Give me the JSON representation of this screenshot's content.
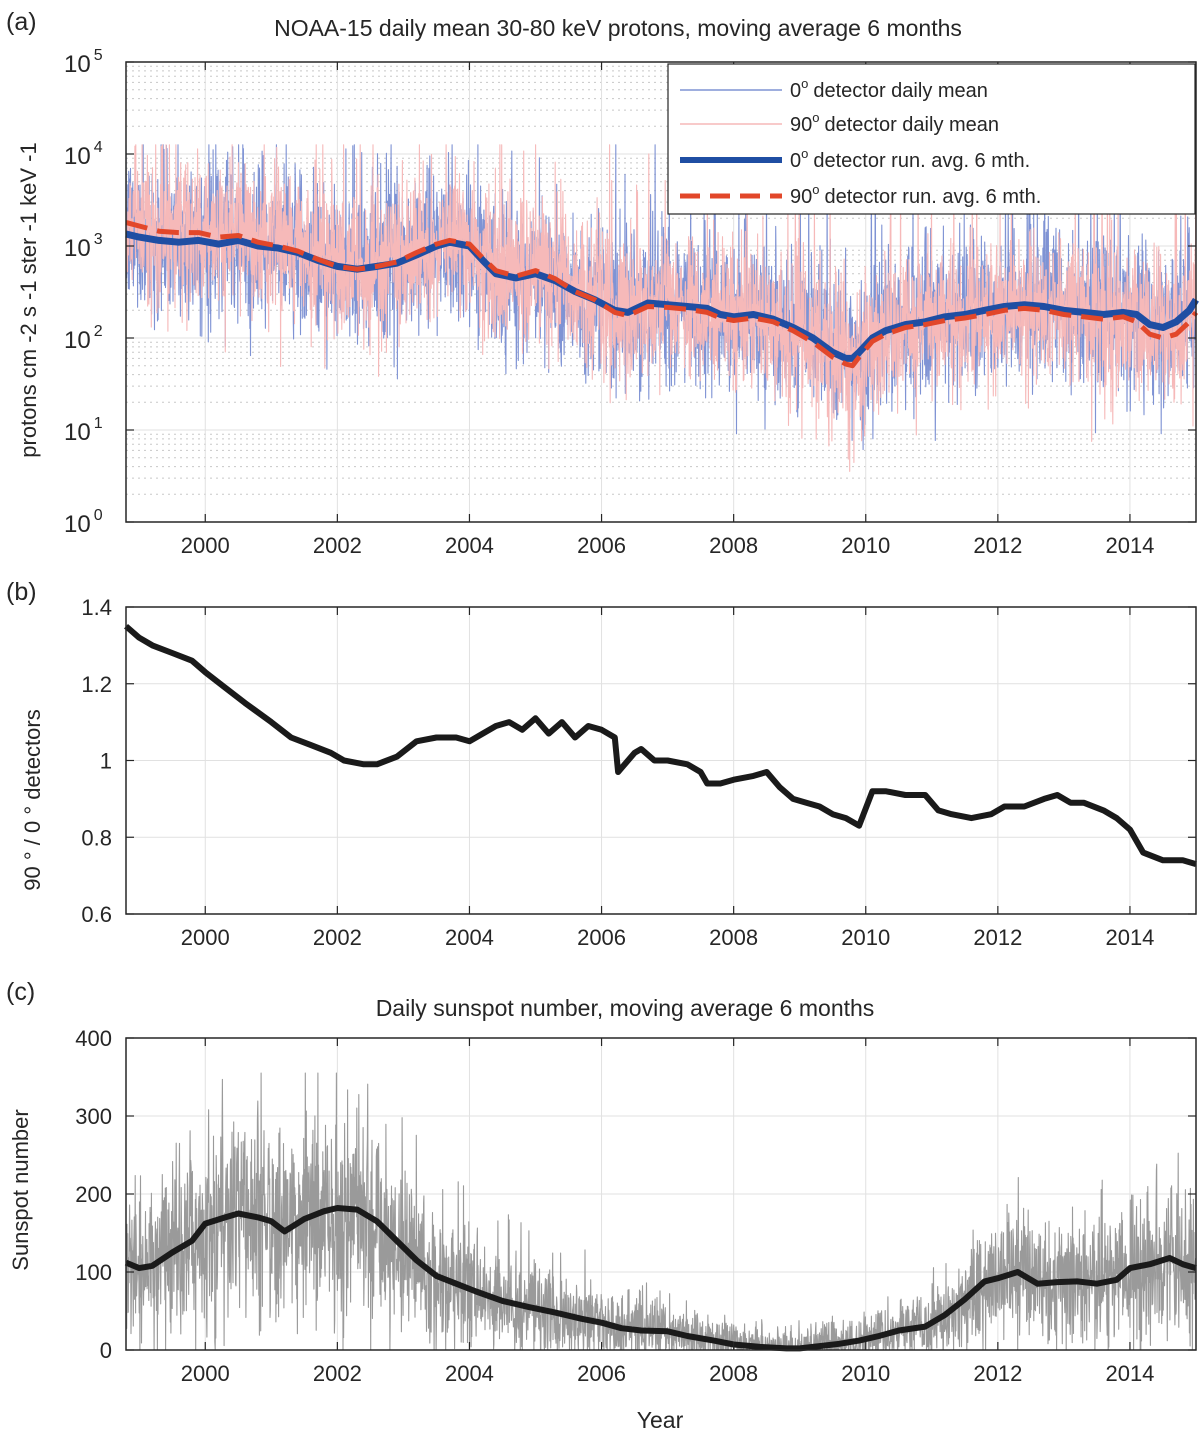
{
  "figure": {
    "panel_labels": [
      "(a)",
      "(b)",
      "(c)"
    ],
    "xlabel": "Year",
    "x_range": [
      1998.8,
      2015.0
    ],
    "x_ticks": [
      2000,
      2002,
      2004,
      2006,
      2008,
      2010,
      2012,
      2014
    ]
  },
  "colors": {
    "p0_raw": "#7f93d4",
    "p90_raw": "#f6b9b9",
    "p0_avg": "#1f4ea3",
    "p90_avg": "#e2472a",
    "black": "#1a1a1a",
    "sunspot_raw": "#9a9a9a",
    "grid": "#e1e1e1",
    "axis": "#262626"
  },
  "chart_data": [
    {
      "type": "line",
      "title": "NOAA-15 daily mean 30-80 keV protons, moving average 6 months",
      "ylabel": "protons cm  -2 s -1 ster -1 keV -1",
      "yscale": "log",
      "ylim": [
        1,
        100000
      ],
      "y_tick_exponents": [
        0,
        1,
        2,
        3,
        4,
        5
      ],
      "y_tick_base": "10",
      "legend_position": "top-right",
      "legend": [
        {
          "angle": "0",
          "sup": "o",
          "text": "detector daily mean"
        },
        {
          "angle": "90",
          "sup": "o",
          "text": "detector daily mean"
        },
        {
          "angle": "0",
          "sup": "o",
          "text": "detector run. avg. 6 mth."
        },
        {
          "angle": "90",
          "sup": "o",
          "text": "detector run. avg. 6 mth."
        }
      ],
      "series": [
        {
          "name": "0 deg detector run. avg. 6 mth.",
          "x": [
            1998.8,
            1999.0,
            1999.3,
            1999.6,
            1999.9,
            2000.2,
            2000.5,
            2000.8,
            2001.1,
            2001.4,
            2001.7,
            2002.0,
            2002.3,
            2002.6,
            2002.9,
            2003.2,
            2003.5,
            2003.7,
            2004.0,
            2004.2,
            2004.4,
            2004.7,
            2005.0,
            2005.3,
            2005.6,
            2005.9,
            2006.2,
            2006.4,
            2006.7,
            2007.0,
            2007.3,
            2007.6,
            2007.8,
            2008.0,
            2008.3,
            2008.6,
            2008.9,
            2009.2,
            2009.5,
            2009.7,
            2009.8,
            2009.9,
            2010.1,
            2010.3,
            2010.6,
            2010.9,
            2011.2,
            2011.5,
            2011.8,
            2012.1,
            2012.4,
            2012.7,
            2013.0,
            2013.3,
            2013.6,
            2013.9,
            2014.1,
            2014.3,
            2014.5,
            2014.7,
            2014.9,
            2015.0
          ],
          "y": [
            1350,
            1250,
            1150,
            1100,
            1150,
            1050,
            1150,
            1000,
            950,
            850,
            700,
            600,
            560,
            600,
            650,
            800,
            1000,
            1100,
            1000,
            700,
            500,
            450,
            500,
            420,
            320,
            260,
            200,
            190,
            240,
            230,
            220,
            210,
            180,
            170,
            180,
            160,
            130,
            100,
            70,
            60,
            60,
            70,
            100,
            120,
            140,
            150,
            170,
            180,
            200,
            220,
            230,
            220,
            200,
            190,
            180,
            190,
            180,
            140,
            130,
            150,
            200,
            260
          ]
        },
        {
          "name": "90 deg detector run. avg. 6 mth.",
          "x": [
            1998.8,
            1999.0,
            1999.3,
            1999.6,
            1999.9,
            2000.2,
            2000.5,
            2000.8,
            2001.1,
            2001.4,
            2001.7,
            2002.0,
            2002.3,
            2002.6,
            2002.9,
            2003.2,
            2003.5,
            2003.7,
            2004.0,
            2004.2,
            2004.4,
            2004.7,
            2005.0,
            2005.3,
            2005.6,
            2005.9,
            2006.2,
            2006.4,
            2006.7,
            2007.0,
            2007.3,
            2007.6,
            2007.8,
            2008.0,
            2008.3,
            2008.6,
            2008.9,
            2009.2,
            2009.5,
            2009.7,
            2009.8,
            2009.9,
            2010.1,
            2010.3,
            2010.6,
            2010.9,
            2011.2,
            2011.5,
            2011.8,
            2012.1,
            2012.4,
            2012.7,
            2013.0,
            2013.3,
            2013.6,
            2013.9,
            2014.1,
            2014.3,
            2014.5,
            2014.7,
            2014.9,
            2015.0
          ],
          "y": [
            1800,
            1650,
            1450,
            1400,
            1400,
            1250,
            1300,
            1100,
            1000,
            880,
            720,
            600,
            560,
            600,
            670,
            850,
            1050,
            1150,
            1050,
            740,
            540,
            470,
            540,
            440,
            320,
            260,
            190,
            175,
            220,
            215,
            205,
            190,
            165,
            155,
            165,
            150,
            120,
            90,
            62,
            52,
            50,
            62,
            92,
            110,
            130,
            140,
            155,
            165,
            180,
            200,
            210,
            200,
            180,
            170,
            160,
            170,
            150,
            110,
            100,
            110,
            150,
            190
          ]
        }
      ]
    },
    {
      "type": "line",
      "title": "",
      "ylabel": "90 ° / 0 ° detectors",
      "ylim": [
        0.6,
        1.4
      ],
      "y_ticks": [
        "0.6",
        "0.8",
        "1",
        "1.2",
        "1.4"
      ],
      "series": [
        {
          "name": "90/0 ratio",
          "x": [
            1998.8,
            1999.0,
            1999.2,
            1999.5,
            1999.8,
            2000.0,
            2000.3,
            2000.6,
            2001.0,
            2001.3,
            2001.6,
            2001.9,
            2002.1,
            2002.4,
            2002.6,
            2002.9,
            2003.2,
            2003.5,
            2003.8,
            2004.0,
            2004.2,
            2004.4,
            2004.6,
            2004.8,
            2005.0,
            2005.2,
            2005.4,
            2005.6,
            2005.8,
            2006.0,
            2006.2,
            2006.25,
            2006.3,
            2006.5,
            2006.6,
            2006.8,
            2007.0,
            2007.3,
            2007.5,
            2007.6,
            2007.8,
            2008.0,
            2008.3,
            2008.5,
            2008.7,
            2008.9,
            2009.1,
            2009.3,
            2009.5,
            2009.7,
            2009.8,
            2009.9,
            2010.1,
            2010.3,
            2010.6,
            2010.9,
            2011.1,
            2011.3,
            2011.6,
            2011.9,
            2012.1,
            2012.4,
            2012.7,
            2012.9,
            2013.1,
            2013.3,
            2013.6,
            2013.8,
            2014.0,
            2014.2,
            2014.5,
            2014.8,
            2015.0
          ],
          "y": [
            1.35,
            1.32,
            1.3,
            1.28,
            1.26,
            1.23,
            1.19,
            1.15,
            1.1,
            1.06,
            1.04,
            1.02,
            1.0,
            0.99,
            0.99,
            1.01,
            1.05,
            1.06,
            1.06,
            1.05,
            1.07,
            1.09,
            1.1,
            1.08,
            1.11,
            1.07,
            1.1,
            1.06,
            1.09,
            1.08,
            1.06,
            0.97,
            0.98,
            1.02,
            1.03,
            1.0,
            1.0,
            0.99,
            0.97,
            0.94,
            0.94,
            0.95,
            0.96,
            0.97,
            0.93,
            0.9,
            0.89,
            0.88,
            0.86,
            0.85,
            0.84,
            0.83,
            0.92,
            0.92,
            0.91,
            0.91,
            0.87,
            0.86,
            0.85,
            0.86,
            0.88,
            0.88,
            0.9,
            0.91,
            0.89,
            0.89,
            0.87,
            0.85,
            0.82,
            0.76,
            0.74,
            0.74,
            0.73
          ]
        }
      ]
    },
    {
      "type": "line",
      "title": "Daily sunspot number, moving average 6 months",
      "ylabel": "Sunspot number",
      "ylim": [
        0,
        400
      ],
      "y_ticks": [
        "0",
        "100",
        "200",
        "300",
        "400"
      ],
      "series": [
        {
          "name": "sunspot run. avg. 6 mth.",
          "x": [
            1998.8,
            1999.0,
            1999.2,
            1999.5,
            1999.8,
            2000.0,
            2000.3,
            2000.5,
            2000.8,
            2001.0,
            2001.2,
            2001.5,
            2001.8,
            2002.0,
            2002.3,
            2002.6,
            2002.9,
            2003.2,
            2003.5,
            2003.8,
            2004.1,
            2004.5,
            2004.9,
            2005.3,
            2005.7,
            2006.0,
            2006.3,
            2006.6,
            2007.0,
            2007.3,
            2007.7,
            2008.0,
            2008.4,
            2008.8,
            2009.0,
            2009.3,
            2009.6,
            2009.9,
            2010.2,
            2010.5,
            2010.9,
            2011.2,
            2011.5,
            2011.8,
            2012.0,
            2012.3,
            2012.6,
            2012.9,
            2013.2,
            2013.5,
            2013.8,
            2014.0,
            2014.3,
            2014.6,
            2014.8,
            2015.0
          ],
          "y": [
            112,
            105,
            108,
            125,
            140,
            162,
            170,
            175,
            170,
            165,
            152,
            168,
            178,
            182,
            180,
            165,
            140,
            115,
            95,
            85,
            75,
            63,
            55,
            48,
            40,
            35,
            28,
            25,
            24,
            18,
            12,
            7,
            4,
            2,
            2,
            5,
            8,
            12,
            18,
            25,
            30,
            45,
            65,
            88,
            92,
            100,
            85,
            87,
            88,
            85,
            90,
            105,
            110,
            118,
            110,
            105
          ]
        },
        {
          "name": "daily sunspot number",
          "x": [],
          "y": []
        }
      ]
    }
  ]
}
